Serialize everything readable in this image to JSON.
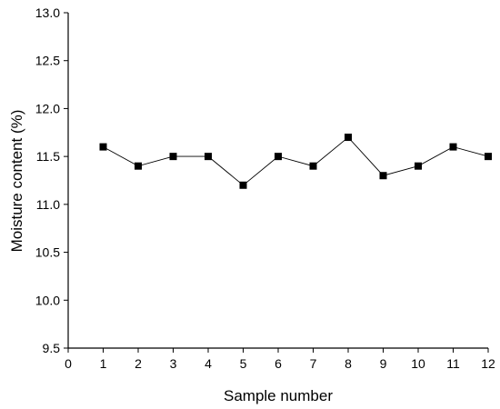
{
  "chart_data": {
    "type": "line",
    "title": "",
    "xlabel": "Sample number",
    "ylabel": "Moisture content (%)",
    "xlim": [
      0,
      12
    ],
    "ylim": [
      9.5,
      13.0
    ],
    "x_ticks": [
      "0",
      "1",
      "2",
      "3",
      "4",
      "5",
      "6",
      "7",
      "8",
      "9",
      "10",
      "11",
      "12"
    ],
    "y_ticks": [
      "9.5",
      "10.0",
      "10.5",
      "11.0",
      "11.5",
      "12.0",
      "12.5",
      "13.0"
    ],
    "grid": false,
    "legend": "none",
    "marker": "square",
    "line_color": "#000000",
    "series": [
      {
        "x": [
          1,
          2,
          3,
          4,
          5,
          6,
          7,
          8,
          9,
          10,
          11,
          12
        ],
        "values": [
          11.6,
          11.4,
          11.5,
          11.5,
          11.2,
          11.5,
          11.4,
          11.7,
          11.3,
          11.4,
          11.6,
          11.5
        ]
      }
    ]
  }
}
